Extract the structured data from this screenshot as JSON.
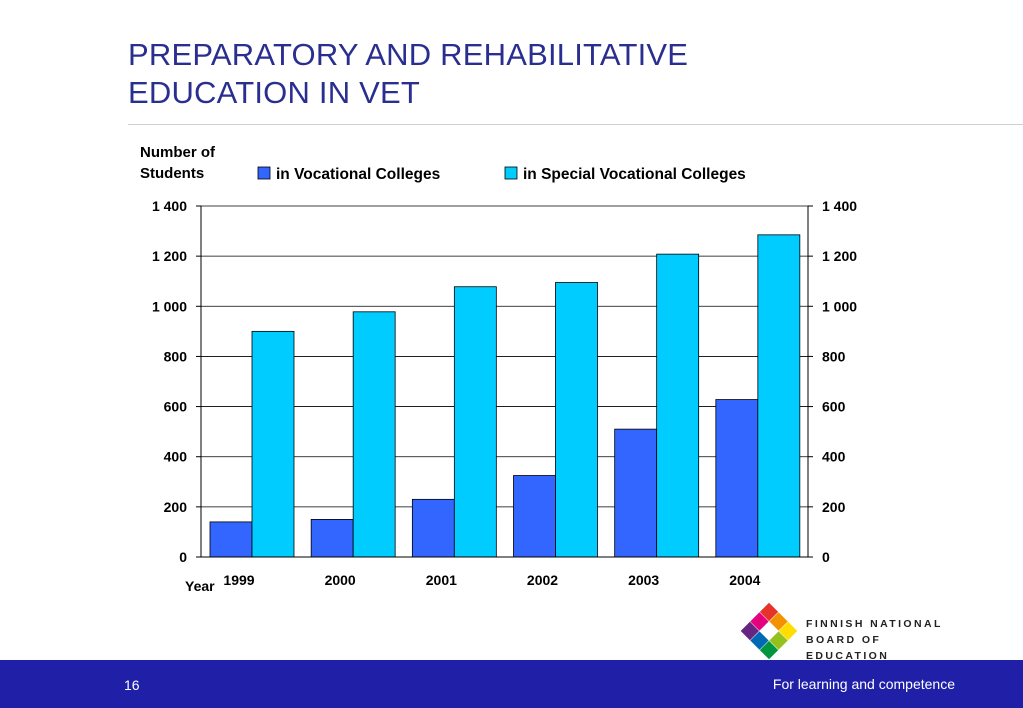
{
  "slide": {
    "title_line1": "PREPARATORY AND REHABILITATIVE",
    "title_line2": "EDUCATION IN VET",
    "page_number": "16",
    "tagline": "For learning and competence",
    "logo_line1": "FINNISH NATIONAL",
    "logo_line2": "BOARD OF EDUCATION"
  },
  "colors": {
    "title": "#2a2f8f",
    "footer_bg": "#1f1fa8",
    "series_vocational": "#3366ff",
    "series_special": "#00ccff"
  },
  "chart_data": {
    "type": "bar",
    "ylabel_line1": "Number of",
    "ylabel_line2": "Students",
    "xlabel": "Year",
    "categories": [
      "1999",
      "2000",
      "2001",
      "2002",
      "2003",
      "2004"
    ],
    "series": [
      {
        "name": "in Vocational Colleges",
        "color": "#3366ff",
        "values": [
          140,
          150,
          230,
          325,
          510,
          628
        ]
      },
      {
        "name": "in Special Vocational Colleges",
        "color": "#00ccff",
        "values": [
          900,
          978,
          1078,
          1095,
          1208,
          1285
        ]
      }
    ],
    "ylim": [
      0,
      1400
    ],
    "yticks": [
      0,
      200,
      400,
      600,
      800,
      1000,
      1200,
      1400
    ],
    "ytick_labels": [
      "0",
      "200",
      "400",
      "600",
      "800",
      "1 000",
      "1 200",
      "1 400"
    ],
    "grid": true,
    "legend_position": "top"
  }
}
